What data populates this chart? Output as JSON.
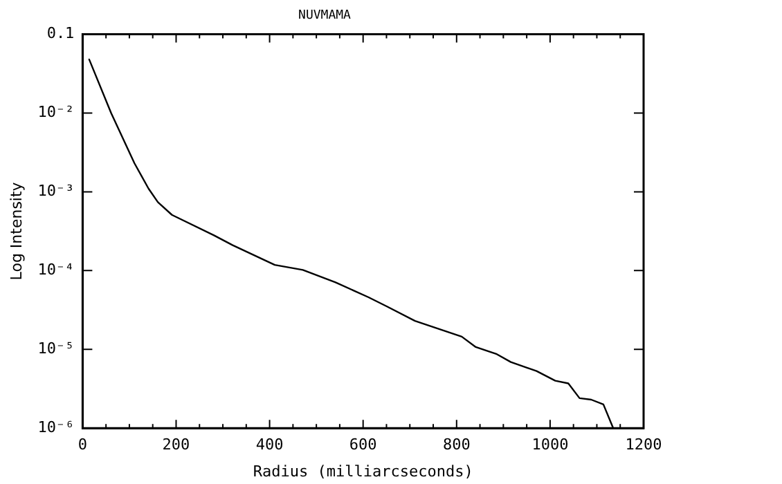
{
  "chart_data": {
    "type": "line",
    "title": "NUVMAMA",
    "xlabel": "Radius (milliarcseconds)",
    "ylabel": "Log Intensity",
    "log": "y",
    "grid": false,
    "legend": false,
    "marker": "none",
    "line_style": "solid",
    "xlim": [
      0,
      1200
    ],
    "ylim": [
      1e-06,
      0.1
    ],
    "xticks": [
      0,
      {
        "value": 50,
        "label": null
      },
      {
        "value": 100,
        "label": null
      },
      {
        "value": 150,
        "label": null
      },
      200,
      {
        "value": 250,
        "label": null
      },
      {
        "value": 300,
        "label": null
      },
      {
        "value": 350,
        "label": null
      },
      400,
      {
        "value": 450,
        "label": null
      },
      {
        "value": 500,
        "label": null
      },
      {
        "value": 550,
        "label": null
      },
      600,
      {
        "value": 650,
        "label": null
      },
      {
        "value": 700,
        "label": null
      },
      {
        "value": 750,
        "label": null
      },
      800,
      {
        "value": 850,
        "label": null
      },
      {
        "value": 900,
        "label": null
      },
      {
        "value": 950,
        "label": null
      },
      1000,
      {
        "value": 1050,
        "label": null
      },
      {
        "value": 1100,
        "label": null
      },
      {
        "value": 1150,
        "label": null
      },
      1200
    ],
    "yticks": [
      {
        "value": 1e-06,
        "label": "10⁻⁶"
      },
      {
        "value": 1e-05,
        "label": "10⁻⁵"
      },
      {
        "value": 0.0001,
        "label": "10⁻⁴"
      },
      {
        "value": 0.001,
        "label": "10⁻³"
      },
      {
        "value": 0.01,
        "label": "10⁻²"
      },
      0.1
    ],
    "x": [
      14,
      61,
      111,
      141,
      161,
      191,
      281,
      321,
      411,
      471,
      541,
      611,
      651,
      711,
      811,
      841,
      886,
      916,
      971,
      1011,
      1039,
      1063,
      1088,
      1114,
      1135
    ],
    "series": [
      {
        "color": "#000000",
        "values": [
          0.048,
          0.01,
          0.0023,
          0.0011,
          0.00074,
          0.00051,
          0.00028,
          0.00021,
          0.000118,
          0.000102,
          7.1e-05,
          4.6e-05,
          3.5e-05,
          2.3e-05,
          1.45e-05,
          1.07e-05,
          8.7e-06,
          6.9e-06,
          5.3e-06,
          4e-06,
          3.7e-06,
          2.4e-06,
          2.3e-06,
          2e-06,
          1e-06
        ]
      }
    ]
  }
}
